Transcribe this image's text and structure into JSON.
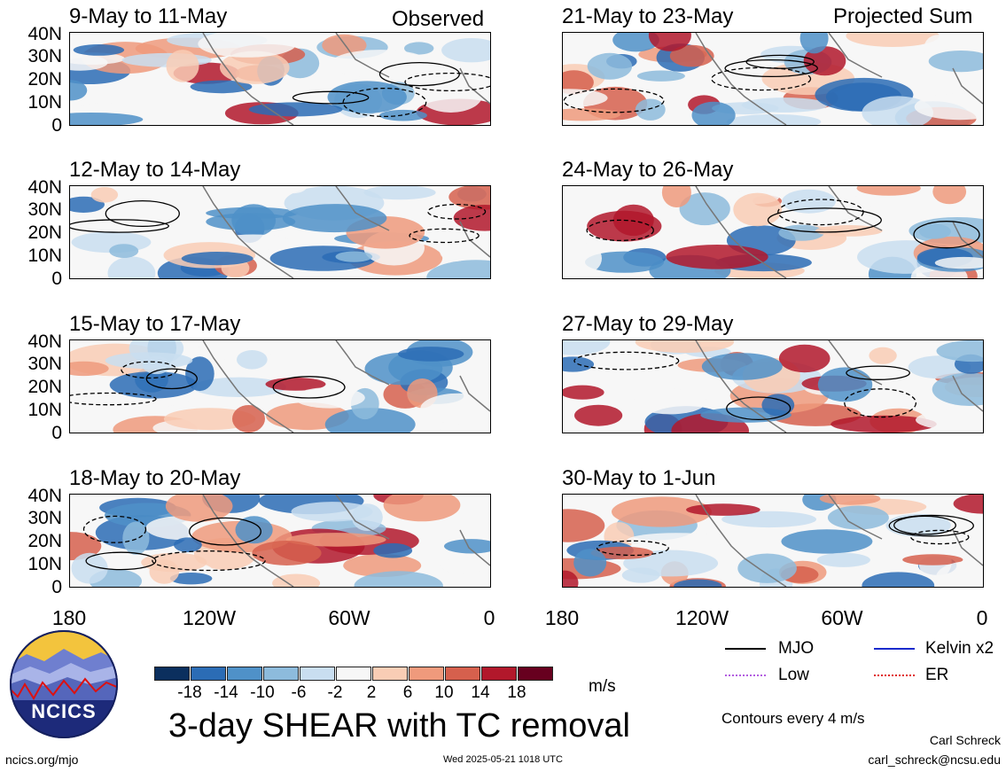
{
  "panels": [
    {
      "title": "9-May to 11-May",
      "corner": "Observed"
    },
    {
      "title": "12-May to 14-May",
      "corner": ""
    },
    {
      "title": "15-May to 17-May",
      "corner": ""
    },
    {
      "title": "18-May to 20-May",
      "corner": ""
    },
    {
      "title": "21-May to 23-May",
      "corner": "Projected Sum"
    },
    {
      "title": "24-May to 26-May",
      "corner": ""
    },
    {
      "title": "27-May to 29-May",
      "corner": ""
    },
    {
      "title": "30-May to 1-Jun",
      "corner": ""
    }
  ],
  "lat_labels": [
    "40N",
    "30N",
    "20N",
    "10N",
    "0"
  ],
  "lon_labels": [
    "180",
    "120W",
    "60W",
    "0"
  ],
  "colorbar": {
    "ticks": [
      "-18",
      "-14",
      "-10",
      "-6",
      "-2",
      "2",
      "6",
      "10",
      "14",
      "18"
    ],
    "colors": [
      "#0b2f5e",
      "#2b6cb5",
      "#4f91c8",
      "#8dbbdc",
      "#c9def0",
      "#f7f7f7",
      "#f9cdb5",
      "#ef9a7c",
      "#d6604d",
      "#b2182b",
      "#67001f"
    ],
    "unit": "m/s"
  },
  "legend": {
    "mjo": {
      "label": "MJO",
      "color": "#000000"
    },
    "kelvin": {
      "label": "Kelvin x2",
      "color": "#1a2bcc"
    },
    "low": {
      "label": "Low",
      "color": "#b35ee0"
    },
    "er": {
      "label": "ER",
      "color": "#e02020"
    }
  },
  "main_title": "3-day SHEAR with TC removal",
  "contour_note": "Contours every 4 m/s",
  "logo": {
    "text": "NCICS"
  },
  "footer": {
    "left": "ncics.org/mjo",
    "timestamp": "Wed 2025-05-21 1018 UTC",
    "author": "Carl Schreck",
    "email": "carl_schreck@ncsu.edu"
  }
}
